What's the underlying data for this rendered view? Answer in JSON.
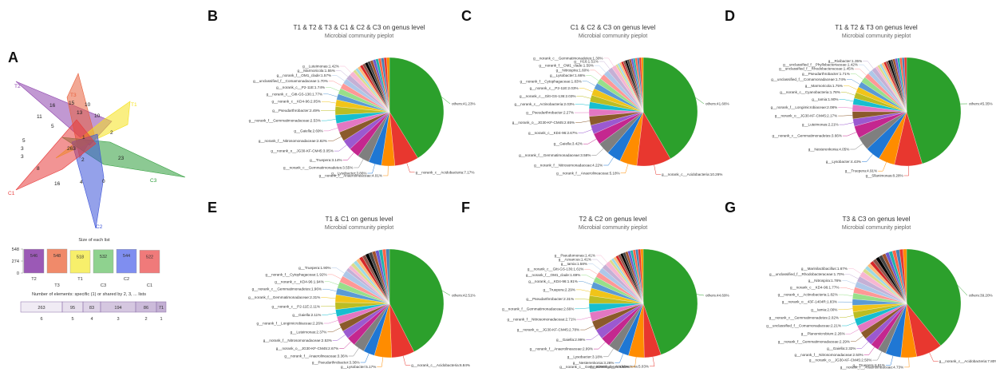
{
  "colors": [
    "#2ca02c",
    "#e8372f",
    "#ff8c00",
    "#1f77d4",
    "#7f7f7f",
    "#c4278f",
    "#9b59d0",
    "#8b5a2b",
    "#e377c2",
    "#17becf",
    "#bcbd22",
    "#f0c419",
    "#5b9bd5",
    "#98df8a",
    "#ff9896",
    "#aec7e8",
    "#c5b0d5",
    "#f7b6d2",
    "#dbdb8d",
    "#9edae5",
    "#ffbb78",
    "#d62728",
    "#8c564b",
    "#000000",
    "#444444",
    "#a0522d",
    "#6a5acd",
    "#20b2aa",
    "#ff6347",
    "#4682b4"
  ],
  "panel_a": {
    "letter": "A",
    "venn": {
      "sets": [
        {
          "name": "T2",
          "color": "#8e44ad"
        },
        {
          "name": "T3",
          "color": "#e8603c"
        },
        {
          "name": "T1",
          "color": "#f5e11c"
        },
        {
          "name": "C3",
          "color": "#2e9d3a"
        },
        {
          "name": "C2",
          "color": "#3d54d8"
        },
        {
          "name": "C1",
          "color": "#e83d3d"
        }
      ],
      "numbers": [
        "16",
        "15",
        "13",
        "10",
        "11",
        "10",
        "2",
        "5",
        "8",
        "263",
        "23",
        "16",
        "4",
        "0",
        "2",
        "5",
        "3",
        "3",
        "1"
      ]
    },
    "sizes": {
      "title": "Size of each list",
      "ymax": 548,
      "yticks": [
        "548",
        "274",
        "0"
      ],
      "bars": [
        {
          "label": "T2",
          "value": 546,
          "color": "#9b59b6"
        },
        {
          "label": "T3",
          "value": 548,
          "color": "#f08a6a"
        },
        {
          "label": "T1",
          "value": 518,
          "color": "#f7ef6b"
        },
        {
          "label": "C3",
          "value": 532,
          "color": "#8fd28f"
        },
        {
          "label": "C2",
          "value": 544,
          "color": "#7f8ef0"
        },
        {
          "label": "C1",
          "value": 522,
          "color": "#f07a7a"
        }
      ]
    },
    "shared": {
      "title": "Number of elements: specific (1) or shared by 2, 3, ... lists",
      "cells": [
        {
          "value": 263,
          "count": "6"
        },
        {
          "value": 95,
          "count": "5"
        },
        {
          "value": 83,
          "count": "4"
        },
        {
          "value": 194,
          "count": "3"
        },
        {
          "value": 86,
          "count": "2"
        },
        {
          "value": 71,
          "count": "1"
        }
      ]
    }
  },
  "chart_data": [
    {
      "panel": "B",
      "type": "pie",
      "title": "T1 & T2 & T3 & C1 & C2 & C3 on genus level",
      "subtitle": "Microbial community pieplot",
      "labels": [
        "others",
        "g__norank_c__Acidobacteria",
        "g__norank_f__Anaerolineaceae",
        "g__Lysobacter",
        "g__norank_c__Gemmatimonadetes",
        "g__Truepera",
        "g__norank_o__JG30-KF-CM45",
        "g__norank_f__Nitrosomonadaceae",
        "g__Gaiella",
        "g__norank_f__Gemmatimonadaceae",
        "g__Pseudarthrobacter",
        "g__norank_c__KD4-96",
        "g__norank_c__Gitt-GS-136",
        "g__norank_c__P2-11E",
        "g__unclassified_f__Comamonadaceae",
        "g__norank_f__OM1_clade",
        "g__Marmoricola",
        "g__Luteimonas"
      ],
      "values": [
        41.23,
        7.17,
        4.01,
        3.86,
        3.55,
        3.14,
        3.05,
        2.82,
        2.69,
        2.53,
        2.49,
        2.05,
        1.77,
        1.74,
        1.7,
        1.57,
        1.55,
        1.42
      ]
    },
    {
      "panel": "C",
      "type": "pie",
      "title": "C1 & C2 & C3 on genus level",
      "subtitle": "Microbial community pieplot",
      "labels": [
        "others",
        "g__norank_c__Acidobacteria",
        "g__norank_f__Anaerolineaceae",
        "g__norank_f__Nitrosomonadaceae",
        "g__norank_f__Gemmatimonadaceae",
        "g__Gaiella",
        "g__norank_c__KD4-96",
        "g__norank_o__JG30-KF-CM45",
        "g__Pseudarthrobacter",
        "g__norank_c__Actinobacteria",
        "g__norank_c__Gitt-GS-136",
        "g__norank_c__P2-11E",
        "g__norank_f__Cytophagaceae",
        "g__Lysobacter",
        "g__Nitrospira",
        "g__norank_f__OM1_clade",
        "g__H16",
        "g__norank_c__Gemmatimonadetes"
      ],
      "values": [
        41.66,
        10.26,
        5.18,
        4.22,
        3.58,
        3.42,
        2.67,
        2.65,
        2.27,
        2.03,
        2.03,
        2.03,
        1.83,
        1.66,
        1.6,
        1.59,
        1.51,
        1.3
      ]
    },
    {
      "panel": "D",
      "type": "pie",
      "title": "T1 & T2 & T3 on genus level",
      "subtitle": "Microbial community pieplot",
      "labels": [
        "others",
        "g__Sllanimonas",
        "g__Truepera",
        "g__Lysobacter",
        "g__Nesterenkonia",
        "g__norank_c__Gemmatimonadetes",
        "g__Luteimonas",
        "g__norank_o__JG30-KF-CM45",
        "g__norank_f__Longimicrobiaceae",
        "g__Iamia",
        "g__norank_c__Cyanobacteria",
        "g__Marmoricola",
        "g__unclassified_f__Comamonadaceae",
        "g__Pseudarthrobacter",
        "g__unclassified_f__Rhodobacteraceae",
        "g__unclassified_f__Phyllobacteriaceae",
        "g__Rivibacter"
      ],
      "values": [
        45.35,
        8.28,
        4.91,
        4.43,
        4.05,
        3.66,
        2.21,
        2.17,
        2.08,
        1.9,
        1.78,
        1.75,
        1.74,
        1.71,
        1.45,
        1.42,
        1.35
      ]
    },
    {
      "panel": "E",
      "type": "pie",
      "title": "T1 & C1 on genus level",
      "subtitle": "Microbial community pieplot",
      "labels": [
        "others",
        "g__norank_c__Acidobacteria",
        "g__Lysobacter",
        "g__Pseudarthrobacter",
        "g__norank_f__Anaerolineaceae",
        "g__norank_o__JG30-KF-CM45",
        "g__norank_f__Nitrosomonadaceae",
        "g__Luteimonas",
        "g__norank_f__Longimicrobiaceae",
        "g__Gaiella",
        "g__norank_c__P2-11E",
        "g__norank_f__Gemmatimonadaceae",
        "g__norank_c__Gemmatimonadetes",
        "g__norank_c__KD4-96",
        "g__norank_f__Cytophagaceae",
        "g__Truepera"
      ],
      "values": [
        42.51,
        6.84,
        5.17,
        3.36,
        3.36,
        2.67,
        2.53,
        2.37,
        2.26,
        2.11,
        2.11,
        2.31,
        1.96,
        1.94,
        1.92,
        1.9
      ]
    },
    {
      "panel": "F",
      "type": "pie",
      "title": "T2 & C2 on genus level",
      "subtitle": "Microbial community pieplot",
      "labels": [
        "others",
        "g__norank_c__Acidobacteria",
        "g__norank_c__Gemmatimonadetes",
        "g__Nesterenkonia",
        "g__Lysobacter",
        "g__norank_f__Anaerolineaceae",
        "g__Gaiella",
        "g__norank_o__JG30-KF-CM45",
        "g__norank_f__Nitrosomonadaceae",
        "g__norank_f__Gemmatimonadaceae",
        "g__Pseudarthrobacter",
        "g__Truepera",
        "g__norank_c__KD4-96",
        "g__norank_f__OM1_clade",
        "g__norank_c__Gitt-GS-136",
        "g__Iamia",
        "g__Azoarcus",
        "g__Pseudomonas"
      ],
      "values": [
        44.69,
        5.03,
        4.69,
        3.26,
        3.18,
        2.99,
        2.99,
        2.78,
        2.71,
        2.66,
        2.31,
        2.29,
        1.91,
        1.69,
        1.61,
        1.58,
        1.41,
        1.41
      ]
    },
    {
      "panel": "G",
      "type": "pie",
      "title": "T3 & C3 on genus level",
      "subtitle": "Microbial community pieplot",
      "labels": [
        "others",
        "g__norank_c__Acidobacteria",
        "g__norank_f__Anaerolineaceae",
        "g__Truepera",
        "g__norank_o__JG30-KF-CM45",
        "g__norank_f__Nitrosomonadaceae",
        "g__Gaiella",
        "g__norank_f__Gemmatimonadaceae",
        "g__Planomicrobium",
        "g__unclassified_f__Comamonadaceae",
        "g__norank_c__Gemmatimonadetes",
        "g__Iamia",
        "g__norank_o__43F-1404R",
        "g__norank_c__Actinobacteria",
        "g__norank_c__KD4-96",
        "g__Nitrospira",
        "g__unclassified_f__Rhodobacteraceae",
        "g__Marinilactibacillus"
      ],
      "values": [
        39.2,
        7.8,
        4.73,
        4.61,
        2.5,
        2.5,
        2.32,
        2.29,
        2.26,
        2.21,
        2.02,
        2.0,
        1.83,
        1.82,
        1.77,
        1.78,
        1.7,
        1.67
      ]
    }
  ]
}
